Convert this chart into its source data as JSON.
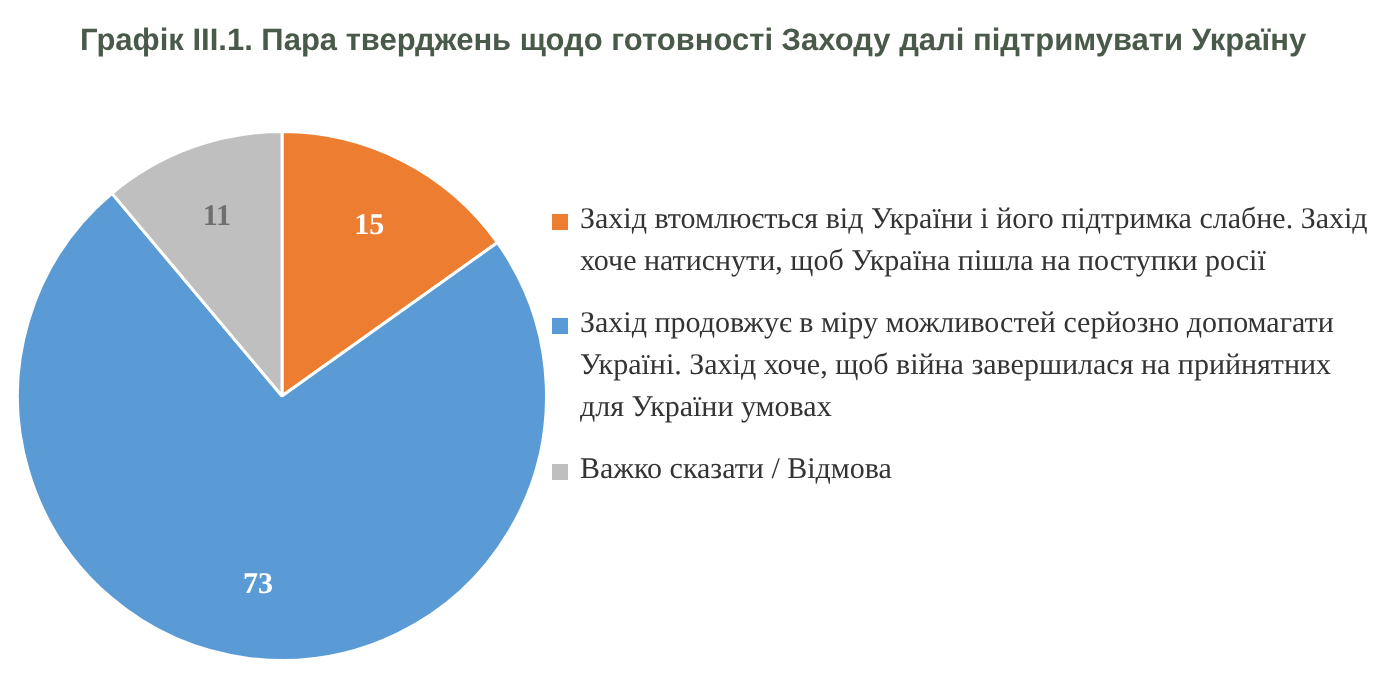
{
  "chart_data": {
    "type": "pie",
    "title": "Графік III.1. Пара тверджень щодо готовності Заходу далі підтримувати Україну",
    "categories": [
      "Захід втомлюється від України і його підтримка слабне. Захід хоче натиснути, щоб Україна пішла на поступки росії",
      "Захід продовжує в міру можливостей серйозно допомагати Україні. Захід хоче, щоб війна завершилася на прийнятних для України умовах",
      "Важко сказати / Відмова"
    ],
    "values": [
      15,
      73,
      11
    ],
    "colors": [
      "#ed7d31",
      "#5b9bd5",
      "#bfbfbf"
    ],
    "data_labels": true,
    "legend": "right"
  }
}
